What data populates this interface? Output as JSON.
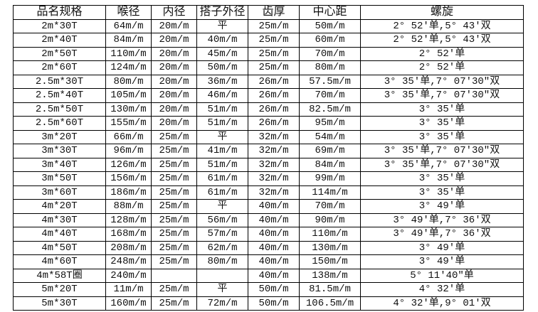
{
  "headers": [
    "品名规格",
    "喉径",
    "内径",
    "搭子外径",
    "齿厚",
    "中心距",
    "螺旋"
  ],
  "rows": [
    [
      "2m*30T",
      "64m/m",
      "20m/m",
      "平",
      "25m/m",
      "50m/m",
      "2° 52′单,5° 43′双"
    ],
    [
      "2m*40T",
      "84m/m",
      "20m/m",
      "40m/m",
      "25m/m",
      "60m/m",
      "2° 52′单,5° 43′双"
    ],
    [
      "2m*50T",
      "110m/m",
      "20m/m",
      "45m/m",
      "25m/m",
      "70m/m",
      "2° 52′单"
    ],
    [
      "2m*60T",
      "124m/m",
      "20m/m",
      "50m/m",
      "25m/m",
      "80m/m",
      "2° 52′单"
    ],
    [
      "2.5m*30T",
      "80m/m",
      "20m/m",
      "36m/m",
      "26m/m",
      "57.5m/m",
      "3° 35′单,7° 07′30″双"
    ],
    [
      "2.5m*40T",
      "105m/m",
      "20m/m",
      "46m/m",
      "26m/m",
      "70m/m",
      "3° 35′单,7° 07′30″双"
    ],
    [
      "2.5m*50T",
      "130m/m",
      "20m/m",
      "51m/m",
      "26m/m",
      "82.5m/m",
      "3° 35′单"
    ],
    [
      "2.5m*60T",
      "155m/m",
      "20m/m",
      "51m/m",
      "26m/m",
      "95m/m",
      "3° 35′单"
    ],
    [
      "3m*20T",
      "66m/m",
      "25m/m",
      "平",
      "32m/m",
      "54m/m",
      "3° 35′单"
    ],
    [
      "3m*30T",
      "96m/m",
      "25m/m",
      "41m/m",
      "32m/m",
      "69m/m",
      "3° 35′单,7° 07′30″双"
    ],
    [
      "3m*40T",
      "126m/m",
      "25m/m",
      "51m/m",
      "32m/m",
      "84m/m",
      "3° 35′单,7° 07′30″双"
    ],
    [
      "3m*50T",
      "156m/m",
      "25m/m",
      "61m/m",
      "32m/m",
      "99m/m",
      "3° 35′单"
    ],
    [
      "3m*60T",
      "186m/m",
      "25m/m",
      "61m/m",
      "32m/m",
      "114m/m",
      "3° 35′单"
    ],
    [
      "4m*20T",
      "88m/m",
      "25m/m",
      "平",
      "40m/m",
      "70m/m",
      "3° 49′单"
    ],
    [
      "4m*30T",
      "128m/m",
      "25m/m",
      "56m/m",
      "40m/m",
      "90m/m",
      "3° 49′单,7° 36′双"
    ],
    [
      "4m*40T",
      "168m/m",
      "25m/m",
      "57m/m",
      "40m/m",
      "110m/m",
      "3° 49′单,7° 36′双"
    ],
    [
      "4m*50T",
      "208m/m",
      "25m/m",
      "62m/m",
      "40m/m",
      "130m/m",
      "3° 49′单"
    ],
    [
      "4m*60T",
      "248m/m",
      "25m/m",
      "80m/m",
      "40m/m",
      "150m/m",
      "3° 49′单"
    ],
    [
      "4m*58T圈",
      "240m/m",
      "",
      "",
      "40m/m",
      "138m/m",
      "5° 11′40″单"
    ],
    [
      "5m*20T",
      "11m/m",
      "25m/m",
      "平",
      "50m/m",
      "81.5m/m",
      "4° 32′单"
    ],
    [
      "5m*30T",
      "160m/m",
      "25m/m",
      "72m/m",
      "50m/m",
      "106.5m/m",
      "4° 32′单,9° 01′双"
    ]
  ]
}
